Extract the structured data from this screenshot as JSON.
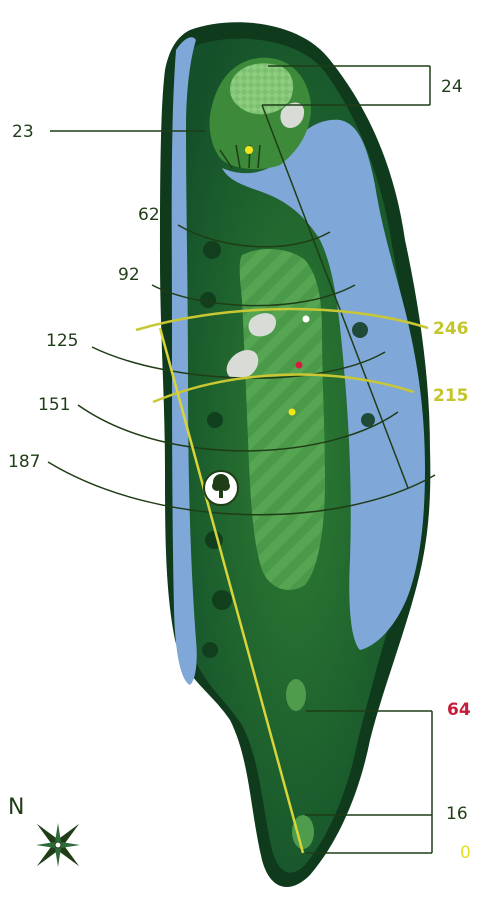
{
  "hole_map": {
    "colors": {
      "water": "#7fa7d8",
      "rough": "#1f6a2a",
      "fairway": "#3f8a3f",
      "tree_line": "#0f3a1c",
      "yardage_line": "#1f3d16",
      "tee_line": "#d8d43a",
      "arc_yellow": "#c9c834",
      "label_dark": "#1f3d16",
      "label_yellow": "#c3c52a",
      "label_red": "#c21d3a",
      "label_gold": "#e7de20"
    },
    "green_depth_label": "24",
    "left_distances": [
      "23",
      "62",
      "92",
      "125",
      "151",
      "187"
    ],
    "right_carry_distances": [
      "246",
      "215"
    ],
    "tee_distances": [
      "64",
      "16",
      "0"
    ],
    "pin_markers": [
      "white",
      "red",
      "yellow",
      "yellow-on-green"
    ],
    "icons": [
      "tree-icon",
      "compass-icon"
    ],
    "compass_label": "N"
  }
}
